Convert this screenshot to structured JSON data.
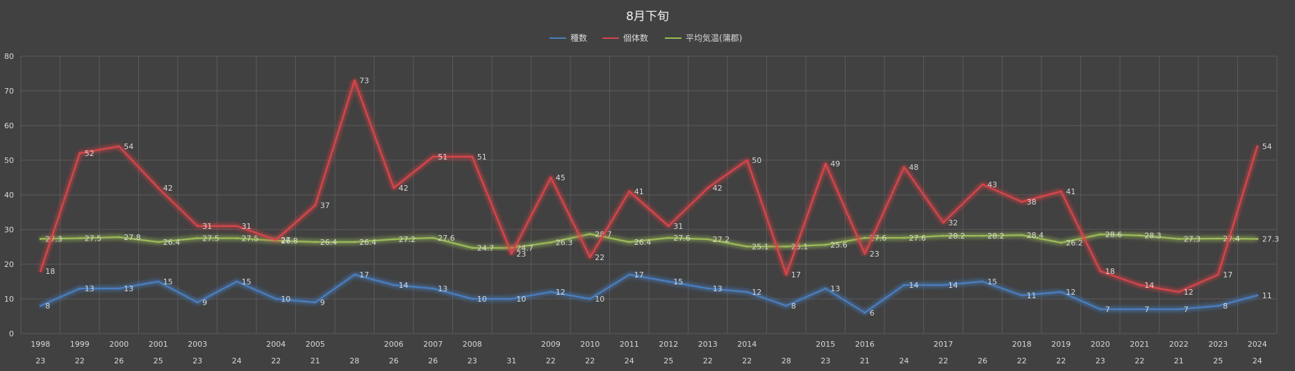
{
  "chart_data": {
    "type": "line",
    "title": "8月下旬",
    "ylim": [
      0,
      80
    ],
    "yticks": [
      0,
      10,
      20,
      30,
      40,
      50,
      60,
      70,
      80
    ],
    "grid": true,
    "legend_position": "top",
    "categories": [
      {
        "year": "1998",
        "day": "23"
      },
      {
        "year": "1999",
        "day": "22"
      },
      {
        "year": "2000",
        "day": "26"
      },
      {
        "year": "2001",
        "day": "25"
      },
      {
        "year": "2003",
        "day": "23"
      },
      {
        "year": "",
        "day": "24"
      },
      {
        "year": "2004",
        "day": "22"
      },
      {
        "year": "2005",
        "day": "21"
      },
      {
        "year": "",
        "day": "28"
      },
      {
        "year": "2006",
        "day": "26"
      },
      {
        "year": "2007",
        "day": "26"
      },
      {
        "year": "2008",
        "day": "23"
      },
      {
        "year": "",
        "day": "31"
      },
      {
        "year": "2009",
        "day": "22"
      },
      {
        "year": "2010",
        "day": "22"
      },
      {
        "year": "2011",
        "day": "24"
      },
      {
        "year": "2012",
        "day": "25"
      },
      {
        "year": "2013",
        "day": "22"
      },
      {
        "year": "2014",
        "day": "22"
      },
      {
        "year": "",
        "day": "28"
      },
      {
        "year": "2015",
        "day": "23"
      },
      {
        "year": "2016",
        "day": "21"
      },
      {
        "year": "",
        "day": "24"
      },
      {
        "year": "2017",
        "day": "22"
      },
      {
        "year": "",
        "day": "26"
      },
      {
        "year": "2018",
        "day": "22"
      },
      {
        "year": "2019",
        "day": "22"
      },
      {
        "year": "2020",
        "day": "23"
      },
      {
        "year": "2021",
        "day": "22"
      },
      {
        "year": "2022",
        "day": "21"
      },
      {
        "year": "2023",
        "day": "25"
      },
      {
        "year": "2024",
        "day": "24"
      }
    ],
    "series": [
      {
        "name": "種数",
        "color": "#4a7fc1",
        "values": [
          8,
          13,
          13,
          15,
          9,
          15,
          10,
          9,
          17,
          14,
          13,
          10,
          10,
          12,
          10,
          17,
          15,
          13,
          12,
          8,
          13,
          6,
          14,
          14,
          15,
          11,
          12,
          7,
          7,
          7,
          8,
          11
        ]
      },
      {
        "name": "個体数",
        "color": "#d9454a",
        "values": [
          18,
          52,
          54,
          42,
          31,
          31,
          27,
          37,
          73,
          42,
          51,
          51,
          23,
          45,
          22,
          41,
          31,
          42,
          50,
          17,
          49,
          23,
          48,
          32,
          43,
          38,
          41,
          18,
          14,
          12,
          17,
          54
        ]
      },
      {
        "name": "平均気温(蒲郡)",
        "color": "#9bbb59",
        "values": [
          27.3,
          27.5,
          27.8,
          26.4,
          27.5,
          27.5,
          26.8,
          26.4,
          26.4,
          27.2,
          27.6,
          24.7,
          24.7,
          26.3,
          28.7,
          26.4,
          27.6,
          27.2,
          25.1,
          25.1,
          25.6,
          27.6,
          27.6,
          28.2,
          28.2,
          28.4,
          26.2,
          28.6,
          28.3,
          27.3,
          27.4,
          27.3
        ]
      }
    ]
  }
}
